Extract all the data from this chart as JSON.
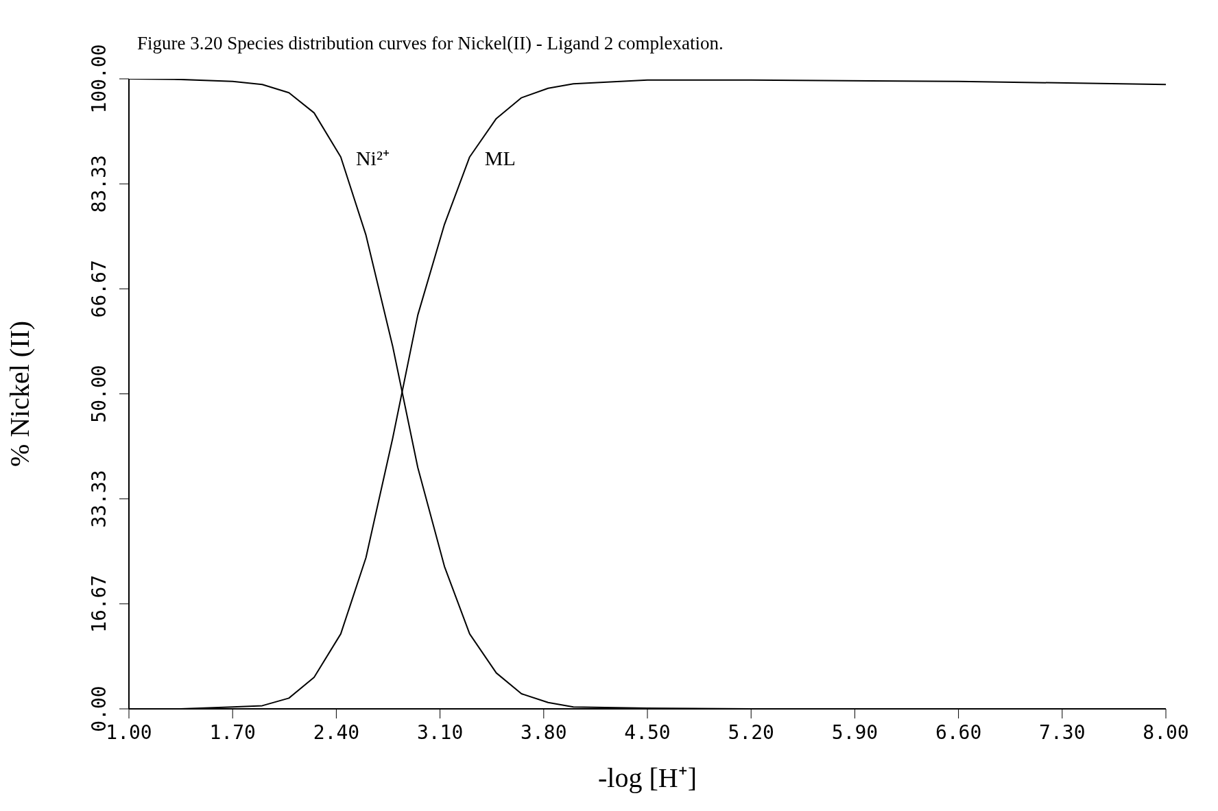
{
  "chart_data": {
    "type": "line",
    "title": "Figure 3.20  Species distribution curves for Nickel(II) - Ligand 2 complexation.",
    "xlabel": "-log [H⁺]",
    "ylabel": "% Nickel (II)",
    "x": [
      1.0,
      1.35,
      1.7,
      1.9,
      2.08,
      2.25,
      2.43,
      2.6,
      2.78,
      2.95,
      3.13,
      3.3,
      3.48,
      3.65,
      3.83,
      4.0,
      4.5,
      5.2,
      6.6,
      8.0
    ],
    "series": [
      {
        "name": "Ni²⁺",
        "color": "#000000",
        "values": [
          100,
          99.9,
          99.6,
          99.1,
          97.8,
          94.6,
          87.6,
          75.2,
          57.6,
          38.3,
          22.6,
          11.9,
          5.7,
          2.4,
          1.0,
          0.3,
          0.1,
          0,
          0,
          0
        ]
      },
      {
        "name": "ML",
        "color": "#000000",
        "values": [
          0,
          0,
          0.3,
          0.5,
          1.7,
          5.0,
          11.9,
          24.0,
          42.9,
          62.5,
          76.9,
          87.6,
          93.7,
          97.0,
          98.5,
          99.2,
          99.8,
          99.8,
          99.6,
          99.1
        ]
      }
    ],
    "xlim": [
      1,
      8
    ],
    "ylim": [
      0,
      100
    ],
    "xticks": [
      {
        "value": 1,
        "label": "1.00"
      },
      {
        "value": 1.7,
        "label": "1.70"
      },
      {
        "value": 2.4,
        "label": "2.40"
      },
      {
        "value": 3.1,
        "label": "3.10"
      },
      {
        "value": 3.8,
        "label": "3.80"
      },
      {
        "value": 4.5,
        "label": "4.50"
      },
      {
        "value": 5.2,
        "label": "5.20"
      },
      {
        "value": 5.9,
        "label": "5.90"
      },
      {
        "value": 6.6,
        "label": "6.60"
      },
      {
        "value": 7.3,
        "label": "7.30"
      },
      {
        "value": 8,
        "label": "8.00"
      }
    ],
    "yticks": [
      {
        "value": 0,
        "label": "0.00"
      },
      {
        "value": 16.67,
        "label": "16.67"
      },
      {
        "value": 33.33,
        "label": "33.33"
      },
      {
        "value": 50,
        "label": "50.00"
      },
      {
        "value": 66.67,
        "label": "66.67"
      },
      {
        "value": 83.33,
        "label": "83.33"
      },
      {
        "value": 100,
        "label": "100.00"
      }
    ],
    "grid": false,
    "legend": false,
    "marker": "none",
    "line_style": "solid"
  }
}
